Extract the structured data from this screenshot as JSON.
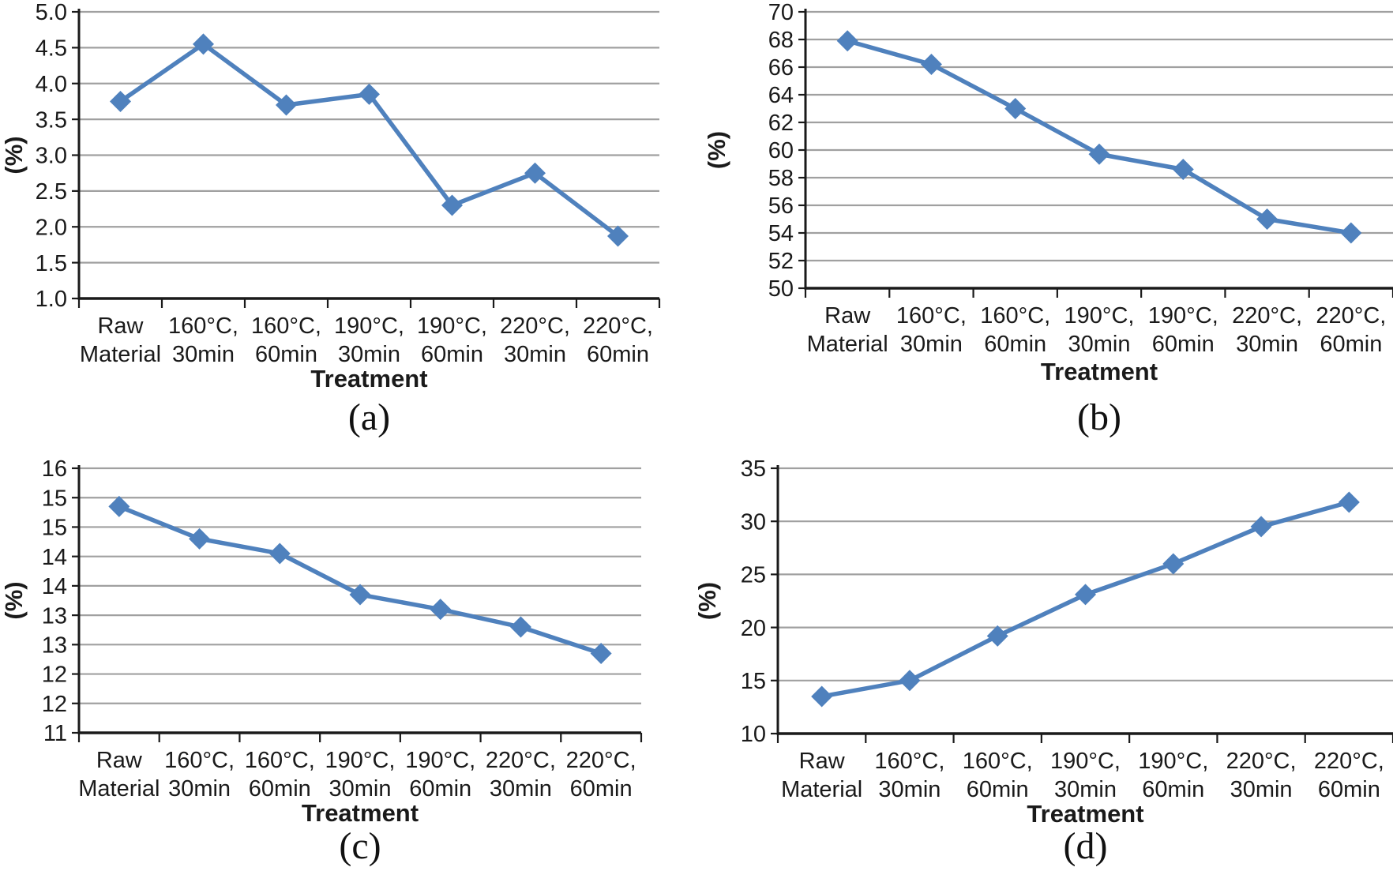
{
  "page": {
    "background": "#ffffff",
    "description_colors": {
      "series_blue": "#4f81bd",
      "gridline_gray": "#a0a0a0",
      "axis_black": "#1a1a1a",
      "text_black": "#1a1a1a"
    }
  },
  "chart_data": [
    {
      "type": "line",
      "caption": "(a)",
      "title": "",
      "xlabel": "Treatment",
      "ylabel": "(%)",
      "categories": [
        "Raw Material",
        "160°C, 30min",
        "160°C, 60min",
        "190°C, 30min",
        "190°C, 60min",
        "220°C, 30min",
        "220°C, 60min"
      ],
      "categories_two_line": [
        [
          "Raw",
          "Material"
        ],
        [
          "160°C,",
          "30min"
        ],
        [
          "160°C,",
          "60min"
        ],
        [
          "190°C,",
          "30min"
        ],
        [
          "190°C,",
          "60min"
        ],
        [
          "220°C,",
          "30min"
        ],
        [
          "220°C,",
          "60min"
        ]
      ],
      "values": [
        3.75,
        4.55,
        3.7,
        3.85,
        2.3,
        2.75,
        1.87
      ],
      "ylim": [
        1.0,
        5.0
      ],
      "ytick_step": 0.5,
      "ytick_labels": [
        "5.0",
        "4.5",
        "4.0",
        "3.5",
        "3.0",
        "2.5",
        "2.0",
        "1.5",
        "1.0"
      ],
      "grid": true,
      "legend": false,
      "marker": "diamond",
      "line_color": "#4f81bd"
    },
    {
      "type": "line",
      "caption": "(b)",
      "title": "",
      "xlabel": "Treatment",
      "ylabel": "(%)",
      "categories": [
        "Raw Material",
        "160°C, 30min",
        "160°C, 60min",
        "190°C, 30min",
        "190°C, 60min",
        "220°C, 30min",
        "220°C, 60min"
      ],
      "categories_two_line": [
        [
          "Raw",
          "Material"
        ],
        [
          "160°C,",
          "30min"
        ],
        [
          "160°C,",
          "60min"
        ],
        [
          "190°C,",
          "30min"
        ],
        [
          "190°C,",
          "60min"
        ],
        [
          "220°C,",
          "30min"
        ],
        [
          "220°C,",
          "60min"
        ]
      ],
      "values": [
        67.9,
        66.2,
        63.0,
        59.7,
        58.6,
        55.0,
        54.0
      ],
      "ylim": [
        50,
        70
      ],
      "ytick_step": 2,
      "ytick_labels": [
        "70",
        "68",
        "66",
        "64",
        "62",
        "60",
        "58",
        "56",
        "54",
        "52",
        "50"
      ],
      "grid": true,
      "legend": false,
      "marker": "diamond",
      "line_color": "#4f81bd"
    },
    {
      "type": "line",
      "caption": "(c)",
      "title": "",
      "xlabel": "Treatment",
      "ylabel": "(%)",
      "categories": [
        "Raw Material",
        "160°C, 30min",
        "160°C, 60min",
        "190°C, 30min",
        "190°C, 60min",
        "220°C, 30min",
        "220°C, 60min"
      ],
      "categories_two_line": [
        [
          "Raw",
          "Material"
        ],
        [
          "160°C,",
          "30min"
        ],
        [
          "160°C,",
          "60min"
        ],
        [
          "190°C,",
          "30min"
        ],
        [
          "190°C,",
          "60min"
        ],
        [
          "220°C,",
          "30min"
        ],
        [
          "220°C,",
          "60min"
        ]
      ],
      "values": [
        14.85,
        14.3,
        14.05,
        13.35,
        13.1,
        12.8,
        12.35
      ],
      "ylim": [
        11,
        15.5
      ],
      "ytick_step": 0.5,
      "ytick_labels": [
        "16",
        "15",
        "15",
        "14",
        "14",
        "13",
        "13",
        "12",
        "12",
        "11"
      ],
      "ytick_note": "0.5-step axis rendered with 0 decimals, producing rounded duplicate labels",
      "grid": true,
      "legend": false,
      "marker": "diamond",
      "line_color": "#4f81bd"
    },
    {
      "type": "line",
      "caption": "(d)",
      "title": "",
      "xlabel": "Treatment",
      "ylabel": "(%)",
      "categories": [
        "Raw Material",
        "160°C, 30min",
        "160°C, 60min",
        "190°C, 30min",
        "190°C, 60min",
        "220°C, 30min",
        "220°C, 60min"
      ],
      "categories_two_line": [
        [
          "Raw",
          "Material"
        ],
        [
          "160°C,",
          "30min"
        ],
        [
          "160°C,",
          "60min"
        ],
        [
          "190°C,",
          "30min"
        ],
        [
          "190°C,",
          "60min"
        ],
        [
          "220°C,",
          "30min"
        ],
        [
          "220°C,",
          "60min"
        ]
      ],
      "values": [
        13.5,
        15.0,
        19.2,
        23.1,
        26.0,
        29.5,
        31.8
      ],
      "ylim": [
        10,
        35
      ],
      "ytick_step": 5,
      "ytick_labels": [
        "35",
        "30",
        "25",
        "20",
        "15",
        "10"
      ],
      "grid": true,
      "legend": false,
      "marker": "diamond",
      "line_color": "#4f81bd"
    }
  ]
}
